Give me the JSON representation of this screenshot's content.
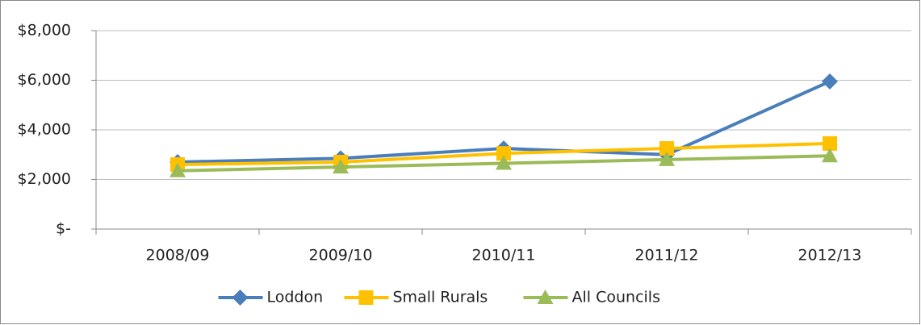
{
  "chart_data": {
    "type": "line",
    "categories": [
      "2008/09",
      "2009/10",
      "2010/11",
      "2011/12",
      "2012/13"
    ],
    "series": [
      {
        "name": "Loddon",
        "color": "#4a7ebb",
        "marker": "diamond",
        "values": [
          2700,
          2850,
          3250,
          3000,
          5950
        ]
      },
      {
        "name": "Small Rurals",
        "color": "#ffc000",
        "marker": "square",
        "values": [
          2600,
          2700,
          3050,
          3250,
          3450
        ]
      },
      {
        "name": "All Councils",
        "color": "#9bbb59",
        "marker": "triangle",
        "values": [
          2350,
          2500,
          2650,
          2800,
          2950
        ]
      }
    ],
    "ylim": [
      0,
      8000
    ],
    "yticks": [
      {
        "value": 0,
        "label": "$-"
      },
      {
        "value": 2000,
        "label": "$2,000"
      },
      {
        "value": 4000,
        "label": "$4,000"
      },
      {
        "value": 6000,
        "label": "$6,000"
      },
      {
        "value": 8000,
        "label": "$8,000"
      }
    ],
    "grid": true,
    "legend": "bottom"
  }
}
